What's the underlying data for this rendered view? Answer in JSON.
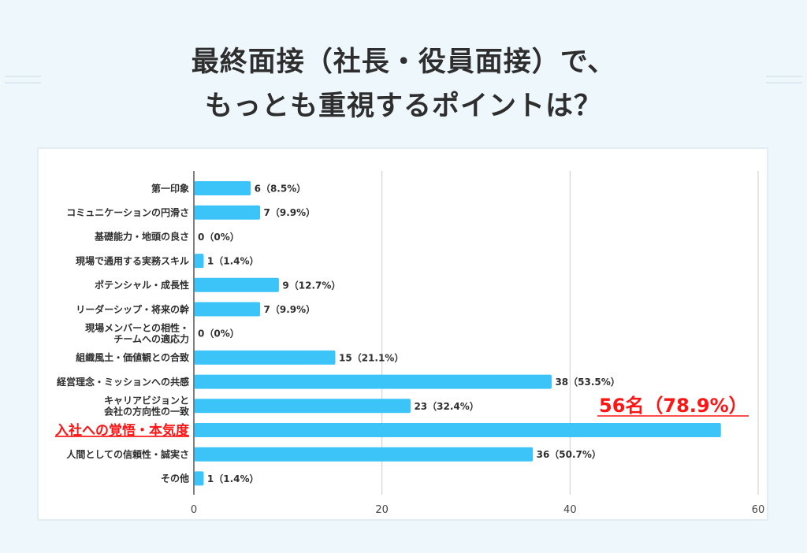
{
  "title": {
    "line1": "最終面接（社長・役員面接）で、",
    "line2": "もっとも重視するポイントは？"
  },
  "colors": {
    "bar": "#3cc4f8",
    "highlight": "#ff1414",
    "text": "#2e2e2e",
    "grid": "#cccccc"
  },
  "annotation": "56名（78.9%）",
  "chart_data": {
    "type": "bar",
    "orientation": "horizontal",
    "xlim": [
      0,
      60
    ],
    "xticks": [
      "0",
      "20",
      "40",
      "60"
    ],
    "grid": true,
    "categories": [
      {
        "lines": [
          "第一印象"
        ],
        "value": 6,
        "label": "6（8.5%）"
      },
      {
        "lines": [
          "コミュニケーションの円滑さ"
        ],
        "value": 7,
        "label": "7（9.9%）"
      },
      {
        "lines": [
          "基礎能力・地頭の良さ"
        ],
        "value": 0,
        "label": "0（0%）"
      },
      {
        "lines": [
          "現場で通用する実務スキル"
        ],
        "value": 1,
        "label": "1（1.4%）"
      },
      {
        "lines": [
          "ポテンシャル・成長性"
        ],
        "value": 9,
        "label": "9（12.7%）"
      },
      {
        "lines": [
          "リーダーシップ・将来の幹"
        ],
        "value": 7,
        "label": "7（9.9%）"
      },
      {
        "lines": [
          "現場メンバーとの相性・",
          "チームへの適応力"
        ],
        "value": 0,
        "label": "0（0%）"
      },
      {
        "lines": [
          "組織風土・価値観との合致"
        ],
        "value": 15,
        "label": "15（21.1%）"
      },
      {
        "lines": [
          "経営理念・ミッションへの共感"
        ],
        "value": 38,
        "label": "38（53.5%）"
      },
      {
        "lines": [
          "キャリアビジョンと",
          "会社の方向性の一致"
        ],
        "value": 23,
        "label": "23（32.4%）"
      },
      {
        "lines": [
          "入社への覚悟・本気度"
        ],
        "value": 56,
        "label": "",
        "highlight": true
      },
      {
        "lines": [
          "人間としての信頼性・誠実さ"
        ],
        "value": 36,
        "label": "36（50.7%）"
      },
      {
        "lines": [
          "その他"
        ],
        "value": 1,
        "label": "1（1.4%）"
      }
    ]
  }
}
